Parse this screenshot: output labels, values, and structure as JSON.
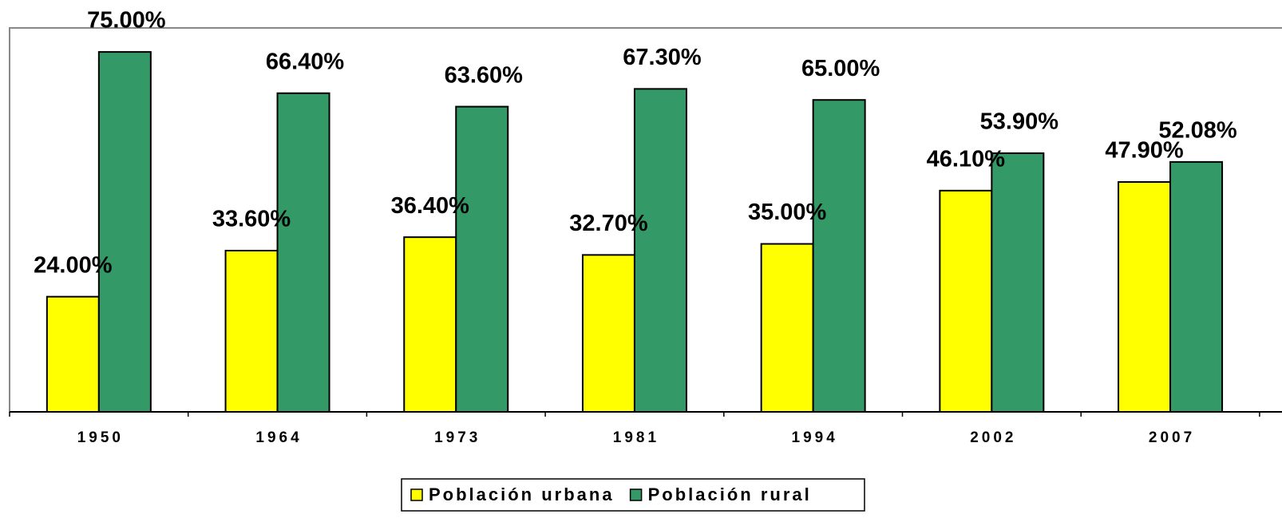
{
  "chart_data": {
    "type": "bar",
    "categories": [
      "1950",
      "1964",
      "1973",
      "1981",
      "1994",
      "2002",
      "2007"
    ],
    "series": [
      {
        "name": "Población urbana",
        "color": "#ffff00",
        "values": [
          24,
          33.6,
          36.4,
          32.7,
          35,
          46.1,
          47.9
        ],
        "value_labels": [
          "24.00%",
          "33.60%",
          "36.40%",
          "32.70%",
          "35.00%",
          "46.10%",
          "47.90%"
        ]
      },
      {
        "name": "Población rural",
        "color": "#339966",
        "values": [
          75,
          66.4,
          63.6,
          67.3,
          65,
          53.9,
          52.08
        ],
        "value_labels": [
          "75.00%",
          "66.40%",
          "63.60%",
          "67.30%",
          "65.00%",
          "53.90%",
          "52.08%"
        ]
      }
    ],
    "ylim": [
      0,
      80
    ],
    "legend": "bottom"
  }
}
